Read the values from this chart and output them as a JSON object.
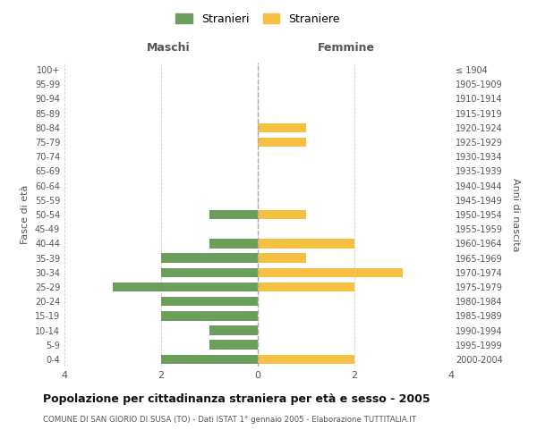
{
  "age_groups": [
    "100+",
    "95-99",
    "90-94",
    "85-89",
    "80-84",
    "75-79",
    "70-74",
    "65-69",
    "60-64",
    "55-59",
    "50-54",
    "45-49",
    "40-44",
    "35-39",
    "30-34",
    "25-29",
    "20-24",
    "15-19",
    "10-14",
    "5-9",
    "0-4"
  ],
  "birth_years": [
    "≤ 1904",
    "1905-1909",
    "1910-1914",
    "1915-1919",
    "1920-1924",
    "1925-1929",
    "1930-1934",
    "1935-1939",
    "1940-1944",
    "1945-1949",
    "1950-1954",
    "1955-1959",
    "1960-1964",
    "1965-1969",
    "1970-1974",
    "1975-1979",
    "1980-1984",
    "1985-1989",
    "1990-1994",
    "1995-1999",
    "2000-2004"
  ],
  "maschi": [
    0,
    0,
    0,
    0,
    0,
    0,
    0,
    0,
    0,
    0,
    1,
    0,
    1,
    2,
    2,
    3,
    2,
    2,
    1,
    1,
    2
  ],
  "femmine": [
    0,
    0,
    0,
    0,
    1,
    1,
    0,
    0,
    0,
    0,
    1,
    0,
    2,
    1,
    3,
    2,
    0,
    0,
    0,
    0,
    2
  ],
  "maschi_color": "#6a9e5a",
  "femmine_color": "#f5c142",
  "title": "Popolazione per cittadinanza straniera per età e sesso - 2005",
  "subtitle": "COMUNE DI SAN GIORIO DI SUSA (TO) - Dati ISTAT 1° gennaio 2005 - Elaborazione TUTTITALIA.IT",
  "ylabel_left": "Fasce di età",
  "ylabel_right": "Anni di nascita",
  "xlabel_left": "Maschi",
  "xlabel_top_right": "Femmine",
  "legend_maschi": "Stranieri",
  "legend_femmine": "Straniere",
  "xlim": 4,
  "background_color": "#ffffff",
  "grid_color": "#cccccc"
}
